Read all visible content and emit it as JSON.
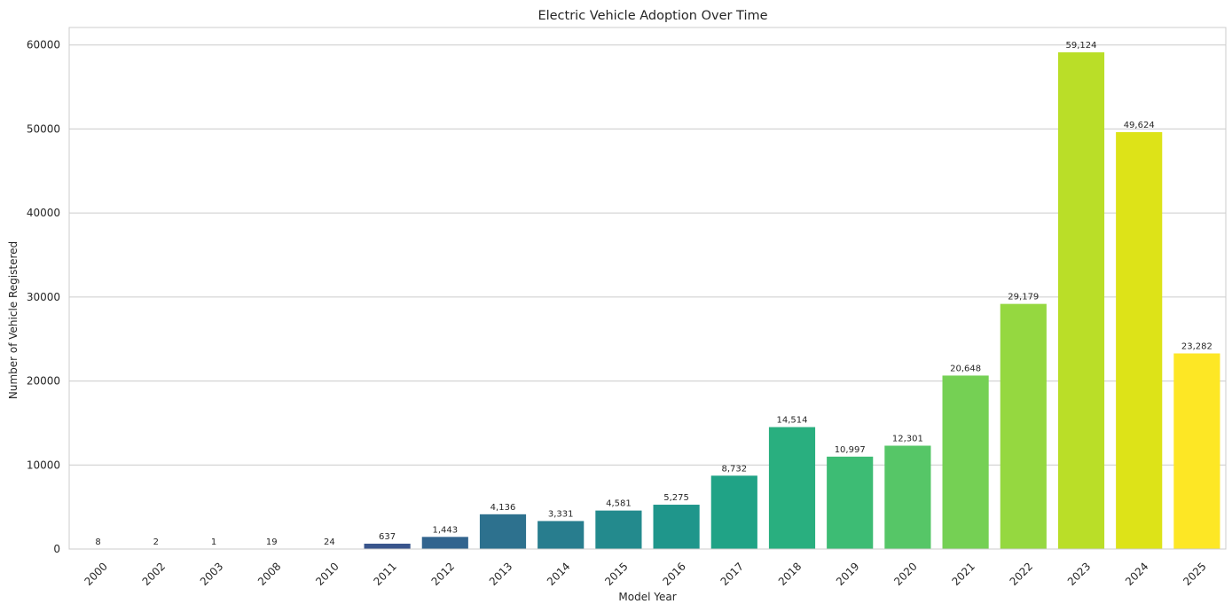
{
  "chart_data": {
    "type": "bar",
    "title": "Electric Vehicle Adoption Over Time",
    "xlabel": "Model Year",
    "ylabel": "Number of Vehicle Registered",
    "categories": [
      "2000",
      "2002",
      "2003",
      "2008",
      "2010",
      "2011",
      "2012",
      "2013",
      "2014",
      "2015",
      "2016",
      "2017",
      "2018",
      "2019",
      "2020",
      "2021",
      "2022",
      "2023",
      "2024",
      "2025"
    ],
    "values": [
      8,
      2,
      1,
      19,
      24,
      637,
      1443,
      4136,
      3331,
      4581,
      5275,
      8732,
      14514,
      10997,
      12301,
      20648,
      29179,
      59124,
      49624,
      23282
    ],
    "data_labels": [
      "8",
      "2",
      "1",
      "19",
      "24",
      "637",
      "1,443",
      "4,136",
      "3,331",
      "4,581",
      "5,275",
      "8,732",
      "14,514",
      "10,997",
      "12,301",
      "20,648",
      "29,179",
      "59,124",
      "49,624",
      "23,282"
    ],
    "colors": [
      "#440154",
      "#481467",
      "#482576",
      "#453781",
      "#3f4788",
      "#39558c",
      "#32648e",
      "#2d718e",
      "#287d8e",
      "#238a8d",
      "#1f968b",
      "#20a386",
      "#29af7f",
      "#3dbc74",
      "#56c667",
      "#75d054",
      "#95d840",
      "#bade28",
      "#dde318",
      "#fde725"
    ],
    "y_ticks": [
      0,
      10000,
      20000,
      30000,
      40000,
      50000,
      60000
    ],
    "ylim": [
      0,
      62080
    ],
    "grid": "horizontal",
    "x_tick_rotation": 45
  }
}
